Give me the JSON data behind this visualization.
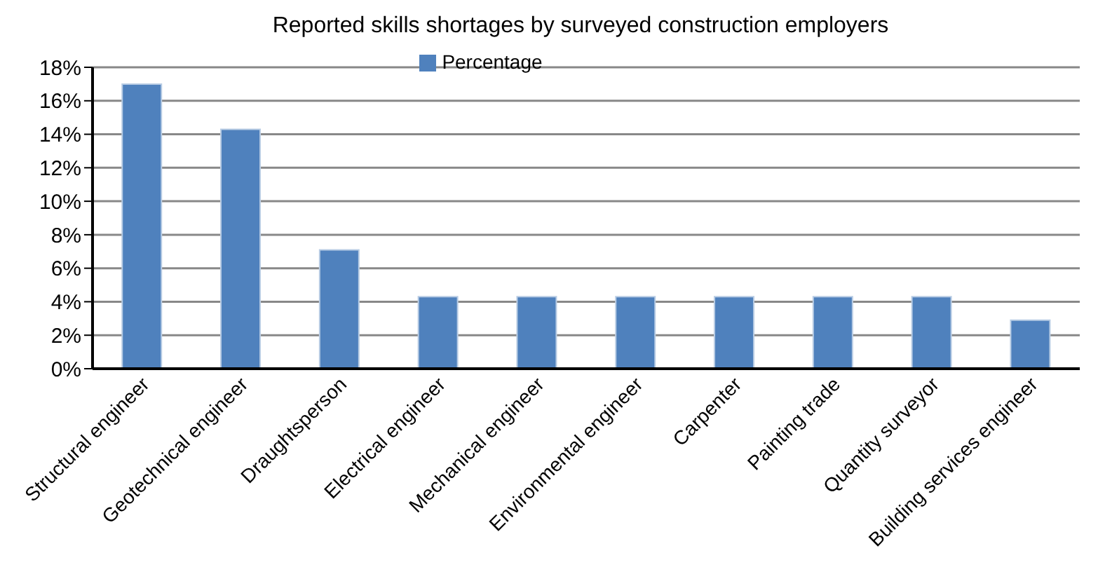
{
  "chart_data": {
    "type": "bar",
    "title": "Reported skills shortages by surveyed construction employers",
    "categories": [
      "Structural engineer",
      "Geotechnical engineer",
      "Draughtsperson",
      "Electrical engineer",
      "Mechanical engineer",
      "Environmental engineer",
      "Carpenter",
      "Painting trade",
      "Quantity surveyor",
      "Building services engineer"
    ],
    "series": [
      {
        "name": "Percentage",
        "color": "#4f81bd",
        "values": [
          17.0,
          14.3,
          7.1,
          4.3,
          4.3,
          4.3,
          4.3,
          4.3,
          4.3,
          2.9
        ]
      }
    ],
    "ylim": [
      0,
      18
    ],
    "yticks": [
      {
        "value": 0,
        "label": "0%"
      },
      {
        "value": 2,
        "label": "2%"
      },
      {
        "value": 4,
        "label": "4%"
      },
      {
        "value": 6,
        "label": "6%"
      },
      {
        "value": 8,
        "label": "8%"
      },
      {
        "value": 10,
        "label": "10%"
      },
      {
        "value": 12,
        "label": "12%"
      },
      {
        "value": 14,
        "label": "14%"
      },
      {
        "value": 16,
        "label": "16%"
      },
      {
        "value": 18,
        "label": "18%"
      }
    ],
    "grid": "y",
    "legend": "top"
  }
}
